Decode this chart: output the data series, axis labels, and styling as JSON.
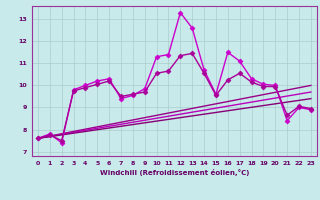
{
  "xlabel": "Windchill (Refroidissement éolien,°C)",
  "xlim": [
    -0.5,
    23.5
  ],
  "ylim": [
    6.8,
    13.6
  ],
  "xticks": [
    0,
    1,
    2,
    3,
    4,
    5,
    6,
    7,
    8,
    9,
    10,
    11,
    12,
    13,
    14,
    15,
    16,
    17,
    18,
    19,
    20,
    21,
    22,
    23
  ],
  "yticks": [
    7,
    8,
    9,
    10,
    11,
    12,
    13
  ],
  "bg_color": "#c8eaea",
  "grid_color": "#aacccc",
  "series": [
    {
      "x": [
        0,
        1,
        2,
        3,
        4,
        5,
        6,
        7,
        8,
        9,
        10,
        11,
        12,
        13,
        14,
        15,
        16,
        17,
        18,
        19,
        20,
        21,
        22,
        23
      ],
      "y": [
        7.6,
        7.8,
        7.4,
        9.8,
        10.0,
        10.2,
        10.3,
        9.4,
        9.55,
        9.85,
        11.3,
        11.4,
        13.3,
        12.6,
        10.7,
        9.6,
        11.5,
        11.1,
        10.3,
        10.05,
        10.0,
        8.4,
        9.0,
        8.9
      ],
      "marker": "D",
      "markersize": 2.5,
      "linewidth": 1.0,
      "color": "#cc00cc"
    },
    {
      "x": [
        0,
        1,
        2,
        3,
        4,
        5,
        6,
        7,
        8,
        9,
        10,
        11,
        12,
        13,
        14,
        15,
        16,
        17,
        18,
        19,
        20,
        21,
        22,
        23
      ],
      "y": [
        7.6,
        7.75,
        7.5,
        9.75,
        9.9,
        10.05,
        10.2,
        9.5,
        9.6,
        9.7,
        10.55,
        10.65,
        11.35,
        11.45,
        10.55,
        9.55,
        10.25,
        10.55,
        10.15,
        9.95,
        9.95,
        8.65,
        9.05,
        8.95
      ],
      "marker": "D",
      "markersize": 2.5,
      "linewidth": 1.0,
      "color": "#aa0099"
    },
    {
      "x": [
        0,
        23
      ],
      "y": [
        7.6,
        10.0
      ],
      "marker": null,
      "linewidth": 1.0,
      "color": "#990088"
    },
    {
      "x": [
        0,
        23
      ],
      "y": [
        7.6,
        9.7
      ],
      "marker": null,
      "linewidth": 1.0,
      "color": "#bb00bb"
    },
    {
      "x": [
        0,
        23
      ],
      "y": [
        7.6,
        9.4
      ],
      "marker": null,
      "linewidth": 1.0,
      "color": "#880077"
    }
  ]
}
